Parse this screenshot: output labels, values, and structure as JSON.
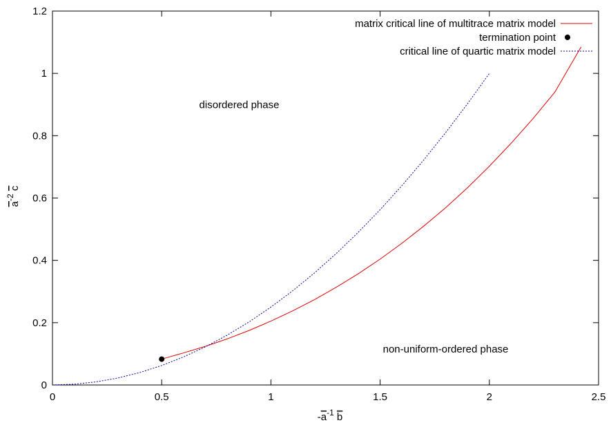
{
  "chart_data": {
    "type": "line",
    "xlabel_parts": {
      "sign": "-",
      "var1": "a",
      "exp": "-1",
      "var2": "b"
    },
    "ylabel_parts": {
      "var1": "a",
      "exp": "-2",
      "var2": "c"
    },
    "xlim": [
      0,
      2.5
    ],
    "ylim": [
      0,
      1.2
    ],
    "x_ticks": [
      "0",
      "0.5",
      "1",
      "1.5",
      "2",
      "2.5"
    ],
    "y_ticks": [
      "0",
      "0.2",
      "0.4",
      "0.6",
      "0.8",
      "1",
      "1.2"
    ],
    "grid": false,
    "legend_position": "top-right",
    "annotations": [
      {
        "text": "disordered phase",
        "x": 0.855,
        "y": 0.9
      },
      {
        "text": "non-uniform-ordered phase",
        "x": 1.8,
        "y": 0.115
      }
    ],
    "series": [
      {
        "name": "matrix critical line of multitrace matrix model",
        "color": "#dd0000",
        "style": "solid",
        "x": [
          0.5,
          0.6,
          0.7,
          0.8,
          0.9,
          1.0,
          1.1,
          1.2,
          1.3,
          1.4,
          1.5,
          1.6,
          1.7,
          1.8,
          1.9,
          2.0,
          2.1,
          2.2,
          2.3,
          2.42
        ],
        "y": [
          0.083,
          0.103,
          0.124,
          0.148,
          0.175,
          0.205,
          0.238,
          0.274,
          0.314,
          0.357,
          0.404,
          0.455,
          0.51,
          0.569,
          0.633,
          0.702,
          0.776,
          0.855,
          0.94,
          1.085
        ]
      },
      {
        "name": "termination point",
        "color": "#000000",
        "style": "point",
        "x": [
          0.5
        ],
        "y": [
          0.083
        ]
      },
      {
        "name": "critical line of quartic matrix model",
        "color": "#0000a0",
        "style": "dotted",
        "x": [
          0.0,
          0.1,
          0.2,
          0.3,
          0.4,
          0.5,
          0.6,
          0.7,
          0.8,
          0.9,
          1.0,
          1.1,
          1.2,
          1.3,
          1.4,
          1.5,
          1.6,
          1.7,
          1.8,
          1.9,
          2.0
        ],
        "y": [
          0.0,
          0.0025,
          0.01,
          0.0225,
          0.04,
          0.0625,
          0.09,
          0.1225,
          0.16,
          0.2025,
          0.25,
          0.3025,
          0.36,
          0.4225,
          0.49,
          0.5625,
          0.64,
          0.7225,
          0.81,
          0.9025,
          1.0
        ]
      }
    ]
  }
}
